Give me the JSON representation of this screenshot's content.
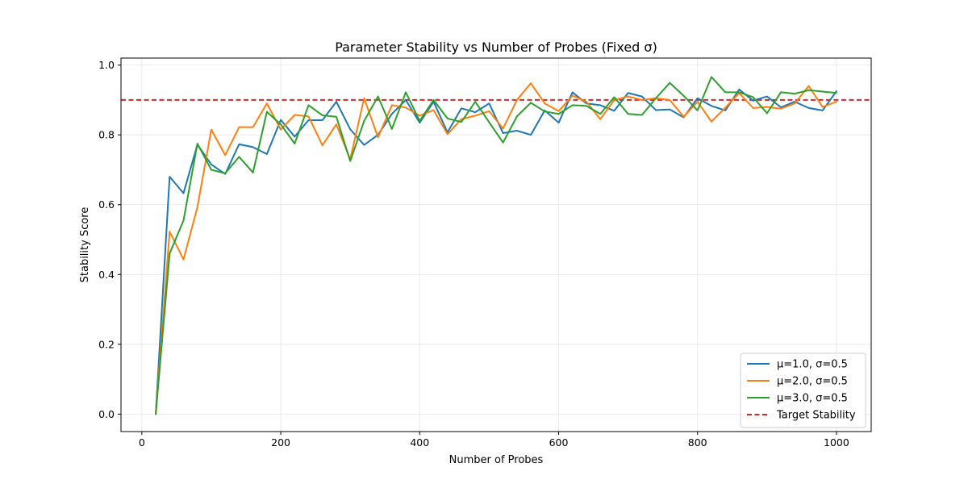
{
  "chart_data": {
    "type": "line",
    "title": "Parameter Stability vs Number of Probes (Fixed σ)",
    "xlabel": "Number of Probes",
    "ylabel": "Stability Score",
    "xlim": [
      -30,
      1050
    ],
    "ylim": [
      -0.05,
      1.02
    ],
    "x_ticks": [
      0,
      200,
      400,
      600,
      800,
      1000
    ],
    "y_ticks": [
      0.0,
      0.2,
      0.4,
      0.6,
      0.8,
      1.0
    ],
    "x_tick_labels": [
      "0",
      "200",
      "400",
      "600",
      "800",
      "1000"
    ],
    "y_tick_labels": [
      "0.0",
      "0.2",
      "0.4",
      "0.6",
      "0.8",
      "1.0"
    ],
    "grid": true,
    "legend_position": "bottom-right",
    "x": [
      20,
      40,
      60,
      80,
      100,
      120,
      140,
      160,
      180,
      200,
      220,
      240,
      260,
      280,
      300,
      320,
      340,
      360,
      380,
      400,
      420,
      440,
      460,
      480,
      500,
      520,
      540,
      560,
      580,
      600,
      620,
      640,
      660,
      680,
      700,
      720,
      740,
      760,
      780,
      800,
      820,
      840,
      860,
      880,
      900,
      920,
      940,
      960,
      980,
      1000
    ],
    "series": [
      {
        "name": "μ=1.0, σ=0.5",
        "color": "#1f77b4",
        "values": [
          0.0,
          0.68,
          0.633,
          0.772,
          0.715,
          0.688,
          0.773,
          0.765,
          0.745,
          0.843,
          0.795,
          0.842,
          0.842,
          0.895,
          0.816,
          0.771,
          0.8,
          0.86,
          0.9,
          0.835,
          0.895,
          0.807,
          0.876,
          0.865,
          0.89,
          0.805,
          0.812,
          0.8,
          0.87,
          0.835,
          0.922,
          0.89,
          0.885,
          0.869,
          0.92,
          0.91,
          0.871,
          0.873,
          0.85,
          0.905,
          0.883,
          0.87,
          0.93,
          0.898,
          0.91,
          0.879,
          0.895,
          0.877,
          0.87,
          0.925
        ]
      },
      {
        "name": "μ=2.0, σ=0.5",
        "color": "#ff7f0e",
        "values": [
          0.0,
          0.523,
          0.443,
          0.593,
          0.815,
          0.742,
          0.822,
          0.822,
          0.89,
          0.815,
          0.857,
          0.853,
          0.77,
          0.83,
          0.73,
          0.905,
          0.793,
          0.885,
          0.878,
          0.855,
          0.871,
          0.802,
          0.845,
          0.855,
          0.868,
          0.818,
          0.9,
          0.948,
          0.89,
          0.868,
          0.912,
          0.895,
          0.845,
          0.9,
          0.91,
          0.9,
          0.905,
          0.9,
          0.852,
          0.895,
          0.838,
          0.878,
          0.92,
          0.877,
          0.88,
          0.875,
          0.89,
          0.94,
          0.88,
          0.895
        ]
      },
      {
        "name": "μ=3.0, σ=0.5",
        "color": "#2ca02c",
        "values": [
          0.0,
          0.46,
          0.555,
          0.775,
          0.7,
          0.69,
          0.737,
          0.692,
          0.866,
          0.83,
          0.775,
          0.885,
          0.856,
          0.852,
          0.725,
          0.84,
          0.91,
          0.817,
          0.922,
          0.84,
          0.9,
          0.847,
          0.837,
          0.895,
          0.836,
          0.778,
          0.853,
          0.892,
          0.867,
          0.86,
          0.885,
          0.883,
          0.86,
          0.908,
          0.86,
          0.857,
          0.905,
          0.949,
          0.912,
          0.87,
          0.966,
          0.922,
          0.922,
          0.908,
          0.862,
          0.922,
          0.918,
          0.928,
          0.924,
          0.92
        ]
      }
    ],
    "reference_line": {
      "name": "Target Stability",
      "y": 0.9,
      "color": "#d62728",
      "style": "dashed"
    }
  }
}
